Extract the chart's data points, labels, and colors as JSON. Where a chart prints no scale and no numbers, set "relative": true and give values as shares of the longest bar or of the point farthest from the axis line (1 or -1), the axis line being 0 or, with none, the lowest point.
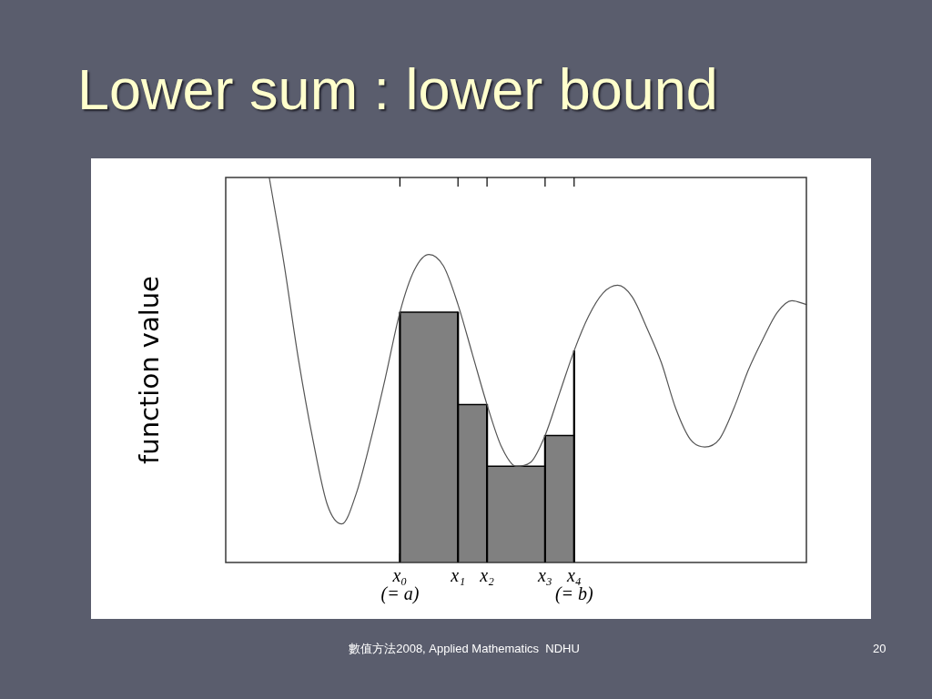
{
  "chart_data": {
    "type": "line",
    "title": "Lower sum : lower bound",
    "ylabel": "function value",
    "relative": true,
    "categories": [
      null,
      null,
      null,
      null,
      null,
      null,
      null,
      null,
      null,
      null,
      null,
      null,
      "x₀\n(= a)",
      null,
      null,
      null,
      "x₁",
      null,
      "x₂",
      null,
      null,
      null,
      "x₃",
      null,
      "x₄\n(= b)",
      null,
      null,
      null,
      null,
      null,
      null,
      null,
      null,
      null,
      null,
      null,
      null,
      null,
      null,
      null,
      null
    ],
    "series": [
      {
        "type": "area",
        "color": "#808080",
        "values": [
          null,
          null,
          null,
          null,
          null,
          null,
          null,
          null,
          null,
          null,
          null,
          null,
          0.65,
          0.65,
          0.65,
          0.65,
          0.65,
          null,
          null,
          null,
          null,
          null,
          null,
          null,
          null,
          null,
          null,
          null,
          null,
          null,
          null,
          null,
          null,
          null,
          null,
          null,
          null,
          null,
          null,
          null,
          null
        ]
      },
      {
        "type": "area",
        "color": "#808080",
        "values": [
          null,
          null,
          null,
          null,
          null,
          null,
          null,
          null,
          null,
          null,
          null,
          null,
          null,
          null,
          null,
          null,
          0.41,
          0.41,
          0.41,
          null,
          null,
          null,
          null,
          null,
          null,
          null,
          null,
          null,
          null,
          null,
          null,
          null,
          null,
          null,
          null,
          null,
          null,
          null,
          null,
          null,
          null
        ]
      },
      {
        "type": "area",
        "color": "#808080",
        "values": [
          null,
          null,
          null,
          null,
          null,
          null,
          null,
          null,
          null,
          null,
          null,
          null,
          null,
          null,
          null,
          null,
          null,
          null,
          0.25,
          0.25,
          0.25,
          0.25,
          0.25,
          null,
          null,
          null,
          null,
          null,
          null,
          null,
          null,
          null,
          null,
          null,
          null,
          null,
          null,
          null,
          null,
          null,
          null
        ]
      },
      {
        "type": "area",
        "color": "#808080",
        "values": [
          null,
          null,
          null,
          null,
          null,
          null,
          null,
          null,
          null,
          null,
          null,
          null,
          null,
          null,
          null,
          null,
          null,
          null,
          null,
          null,
          null,
          null,
          0.33,
          0.33,
          0.33,
          null,
          null,
          null,
          null,
          null,
          null,
          null,
          null,
          null,
          null,
          null,
          null,
          null,
          null,
          null,
          null
        ]
      },
      {
        "type": "bar",
        "color": "#000000",
        "values": [
          null,
          null,
          null,
          null,
          null,
          null,
          null,
          null,
          null,
          null,
          null,
          null,
          0.65,
          null,
          null,
          null,
          0.65,
          null,
          0.41,
          null,
          null,
          null,
          0.33,
          null,
          0.55,
          null,
          null,
          null,
          null,
          null,
          null,
          null,
          null,
          null,
          null,
          null,
          null,
          null,
          null,
          null,
          null
        ]
      },
      {
        "color": "#555555",
        "values": [
          null,
          null,
          null,
          1.0,
          0.78,
          0.53,
          0.32,
          0.15,
          0.1,
          0.18,
          0.32,
          0.48,
          0.65,
          0.76,
          0.8,
          0.77,
          0.67,
          0.54,
          0.41,
          0.3,
          0.25,
          0.26,
          0.33,
          0.44,
          0.55,
          0.64,
          0.7,
          0.72,
          0.69,
          0.61,
          0.52,
          0.4,
          0.32,
          0.3,
          0.32,
          0.4,
          0.5,
          0.58,
          0.65,
          0.68,
          0.67
        ]
      }
    ],
    "marker": "none",
    "annotations": [
      "數值方法2008, Applied Mathematics  NDHU",
      "20"
    ]
  }
}
